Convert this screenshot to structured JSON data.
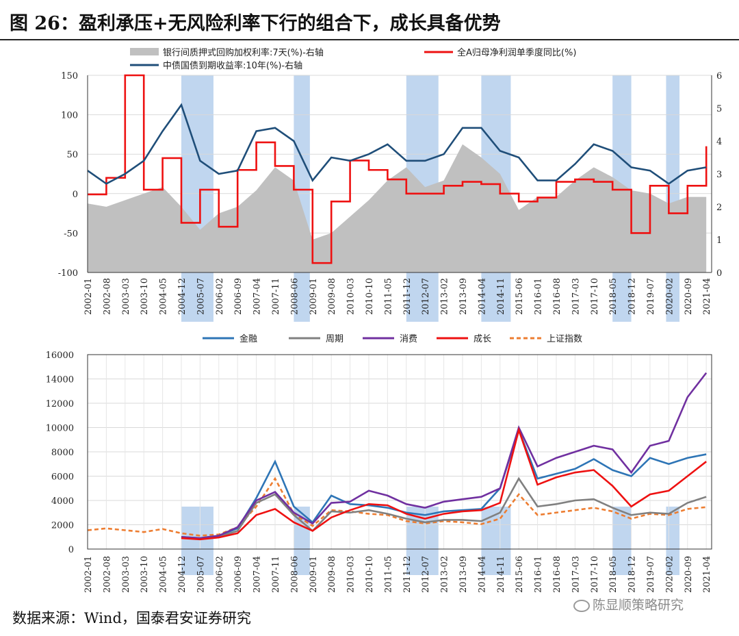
{
  "title": "图 26：盈利承压+无风险利率下行的组合下，成长具备优势",
  "footer": "数据来源：Wind，国泰君安证券研究",
  "watermark": "陈显顺策略研究",
  "colors": {
    "shade": "#8db4e2",
    "repo": "#c0c0c0",
    "bond": "#1f4e79",
    "profit": "#ee1111",
    "finance": "#2e75b6",
    "cycle": "#808080",
    "consumer": "#7030a0",
    "growth": "#ee1111",
    "sse": "#ed7d31"
  },
  "chart_data": [
    {
      "type": "line",
      "x_tick_labels": [
        "2002-01",
        "2002-08",
        "2003-03",
        "2003-10",
        "2004-05",
        "2004-12",
        "2005-07",
        "2006-02",
        "2006-09",
        "2007-04",
        "2007-11",
        "2008-06",
        "2009-01",
        "2009-08",
        "2010-03",
        "2010-10",
        "2011-05",
        "2011-12",
        "2012-07",
        "2013-02",
        "2013-09",
        "2014-04",
        "2014-11",
        "2015-06",
        "2016-01",
        "2016-08",
        "2017-03",
        "2017-10",
        "2018-05",
        "2018-12",
        "2019-07",
        "2020-02",
        "2020-09",
        "2021-04"
      ],
      "y_left": {
        "range": [
          -100,
          150
        ],
        "ticks": [
          "150",
          "100",
          "50",
          "0",
          "-50",
          "-100"
        ]
      },
      "y_right": {
        "range": [
          0,
          6
        ],
        "ticks": [
          "6",
          "5",
          "4",
          "3",
          "2",
          "1",
          "0"
        ]
      },
      "shaded_periods": [
        [
          "2004-12",
          "2005-12"
        ],
        [
          "2008-06",
          "2008-12"
        ],
        [
          "2011-12",
          "2012-12"
        ],
        [
          "2014-04",
          "2015-03"
        ],
        [
          "2018-05",
          "2018-12"
        ],
        [
          "2020-01",
          "2020-06"
        ]
      ],
      "legend": [
        {
          "label": "银行间质押式回购加权利率:7天(%)-右轴",
          "kind": "area"
        },
        {
          "label": "全A归母净利润单季度同比(%)",
          "kind": "line"
        },
        {
          "label": "中债国债到期收益率:10年(%)-右轴",
          "kind": "line"
        }
      ],
      "series": [
        {
          "name": "银行间质押式回购加权利率:7天(%)-右轴",
          "axis": "right",
          "type": "area",
          "x": [
            "2002-01",
            "2002-08",
            "2003-03",
            "2003-10",
            "2004-05",
            "2004-12",
            "2005-07",
            "2006-02",
            "2006-09",
            "2007-04",
            "2007-11",
            "2008-06",
            "2009-01",
            "2009-08",
            "2010-03",
            "2010-10",
            "2011-05",
            "2011-12",
            "2012-07",
            "2013-02",
            "2013-09",
            "2014-04",
            "2014-11",
            "2015-06",
            "2016-01",
            "2016-08",
            "2017-03",
            "2017-10",
            "2018-05",
            "2018-12",
            "2019-07",
            "2020-02",
            "2020-09",
            "2021-04"
          ],
          "values": [
            2.1,
            2.0,
            2.2,
            2.4,
            2.6,
            2.0,
            1.3,
            1.8,
            2.0,
            2.5,
            3.2,
            2.8,
            1.0,
            1.2,
            1.7,
            2.2,
            2.8,
            3.2,
            2.6,
            2.8,
            3.9,
            3.5,
            3.0,
            1.9,
            2.3,
            2.3,
            2.8,
            3.2,
            2.9,
            2.5,
            2.4,
            2.1,
            2.3,
            2.3
          ]
        },
        {
          "name": "全A归母净利润单季度同比(%)",
          "axis": "left",
          "type": "line",
          "x": [
            "2002-01",
            "2002-08",
            "2003-03",
            "2003-10",
            "2004-05",
            "2004-12",
            "2005-07",
            "2006-02",
            "2006-09",
            "2007-04",
            "2007-11",
            "2008-06",
            "2009-01",
            "2009-08",
            "2010-03",
            "2010-10",
            "2011-05",
            "2011-12",
            "2012-07",
            "2013-02",
            "2013-09",
            "2014-04",
            "2014-11",
            "2015-06",
            "2016-01",
            "2016-08",
            "2017-03",
            "2017-10",
            "2018-05",
            "2018-12",
            "2019-07",
            "2020-02",
            "2020-09",
            "2021-04"
          ],
          "values": [
            -1,
            20,
            150,
            5,
            45,
            -37,
            5,
            -42,
            30,
            65,
            35,
            5,
            -88,
            -10,
            42,
            30,
            18,
            0,
            0,
            10,
            15,
            12,
            0,
            -10,
            -5,
            15,
            18,
            15,
            5,
            -50,
            10,
            -25,
            10,
            60
          ]
        },
        {
          "name": "中债国债到期收益率:10年(%)-右轴",
          "axis": "right",
          "type": "line",
          "x": [
            "2002-01",
            "2002-08",
            "2003-03",
            "2003-10",
            "2004-05",
            "2004-12",
            "2005-07",
            "2006-02",
            "2006-09",
            "2007-04",
            "2007-11",
            "2008-06",
            "2009-01",
            "2009-08",
            "2010-03",
            "2010-10",
            "2011-05",
            "2011-12",
            "2012-07",
            "2013-02",
            "2013-09",
            "2014-04",
            "2014-11",
            "2015-06",
            "2016-01",
            "2016-08",
            "2017-03",
            "2017-10",
            "2018-05",
            "2018-12",
            "2019-07",
            "2020-02",
            "2020-09",
            "2021-04"
          ],
          "values": [
            3.1,
            2.7,
            3.0,
            3.4,
            4.3,
            5.1,
            3.4,
            3.0,
            3.1,
            4.3,
            4.4,
            4.0,
            2.8,
            3.5,
            3.4,
            3.6,
            3.9,
            3.4,
            3.4,
            3.6,
            4.4,
            4.4,
            3.7,
            3.5,
            2.8,
            2.8,
            3.3,
            3.9,
            3.7,
            3.2,
            3.1,
            2.7,
            3.1,
            3.2
          ]
        }
      ]
    },
    {
      "type": "line",
      "x_tick_labels": [
        "2002-01",
        "2002-08",
        "2003-03",
        "2003-10",
        "2004-05",
        "2004-12",
        "2005-07",
        "2006-02",
        "2006-09",
        "2007-04",
        "2007-11",
        "2008-06",
        "2009-01",
        "2009-08",
        "2010-03",
        "2010-10",
        "2011-05",
        "2011-12",
        "2012-07",
        "2013-02",
        "2013-09",
        "2014-04",
        "2014-11",
        "2015-06",
        "2016-01",
        "2016-08",
        "2017-03",
        "2017-10",
        "2018-05",
        "2018-12",
        "2019-07",
        "2020-02",
        "2020-09",
        "2021-04"
      ],
      "y": {
        "range": [
          0,
          16000
        ],
        "ticks": [
          "16000",
          "14000",
          "12000",
          "10000",
          "8000",
          "6000",
          "4000",
          "2000",
          "0"
        ]
      },
      "shaded_periods": [
        [
          "2004-12",
          "2005-12"
        ],
        [
          "2008-06",
          "2008-12"
        ],
        [
          "2011-12",
          "2012-12"
        ],
        [
          "2014-04",
          "2015-03"
        ],
        [
          "2018-05",
          "2018-12"
        ],
        [
          "2020-01",
          "2020-06"
        ]
      ],
      "legend": [
        {
          "label": "金融",
          "style": "solid"
        },
        {
          "label": "周期",
          "style": "solid"
        },
        {
          "label": "消费",
          "style": "solid"
        },
        {
          "label": "成长",
          "style": "solid"
        },
        {
          "label": "上证指数",
          "style": "dashed"
        }
      ],
      "x": [
        "2002-01",
        "2002-08",
        "2003-03",
        "2003-10",
        "2004-05",
        "2004-12",
        "2005-07",
        "2006-02",
        "2006-09",
        "2007-04",
        "2007-11",
        "2008-06",
        "2009-01",
        "2009-08",
        "2010-03",
        "2010-10",
        "2011-05",
        "2011-12",
        "2012-07",
        "2013-02",
        "2013-09",
        "2014-04",
        "2014-11",
        "2015-06",
        "2016-01",
        "2016-08",
        "2017-03",
        "2017-10",
        "2018-05",
        "2018-12",
        "2019-07",
        "2020-02",
        "2020-09",
        "2021-04"
      ],
      "series": [
        {
          "name": "上证指数",
          "values": [
            1550,
            1700,
            1550,
            1400,
            1650,
            1300,
            1100,
            1200,
            1800,
            3500,
            5800,
            2900,
            1900,
            3200,
            3100,
            2900,
            2800,
            2300,
            2100,
            2300,
            2200,
            2050,
            2500,
            4500,
            2800,
            3000,
            3200,
            3400,
            3100,
            2500,
            2900,
            2800,
            3300,
            3450
          ]
        },
        {
          "name": "金融",
          "values": [
            null,
            null,
            null,
            null,
            null,
            1000,
            900,
            1100,
            1700,
            4200,
            7200,
            3500,
            2200,
            4400,
            3700,
            3600,
            3400,
            3000,
            2800,
            3100,
            3200,
            3300,
            5000,
            9800,
            5800,
            6200,
            6600,
            7400,
            6500,
            6000,
            7500,
            7000,
            7500,
            7800
          ]
        },
        {
          "name": "周期",
          "values": [
            null,
            null,
            null,
            null,
            null,
            950,
            850,
            1000,
            1500,
            3800,
            4500,
            2800,
            1500,
            3100,
            3000,
            3200,
            2900,
            2500,
            2200,
            2400,
            2400,
            2300,
            3000,
            5800,
            3500,
            3700,
            4000,
            4100,
            3400,
            2800,
            3000,
            2900,
            3800,
            4300
          ]
        },
        {
          "name": "消费",
          "values": [
            null,
            null,
            null,
            null,
            null,
            1000,
            900,
            1100,
            1800,
            4000,
            4700,
            3000,
            2100,
            3800,
            3900,
            4800,
            4400,
            3700,
            3400,
            3900,
            4100,
            4300,
            5000,
            10000,
            6800,
            7500,
            8000,
            8500,
            8200,
            6300,
            8500,
            8900,
            12500,
            14500
          ]
        },
        {
          "name": "成长",
          "values": [
            null,
            null,
            null,
            null,
            null,
            900,
            800,
            950,
            1300,
            2800,
            3300,
            2200,
            1500,
            2600,
            3200,
            3700,
            3600,
            2900,
            2500,
            2900,
            3100,
            3200,
            3800,
            9800,
            5300,
            5900,
            6300,
            6500,
            5200,
            3500,
            4500,
            4800,
            6000,
            7200
          ]
        }
      ]
    }
  ]
}
